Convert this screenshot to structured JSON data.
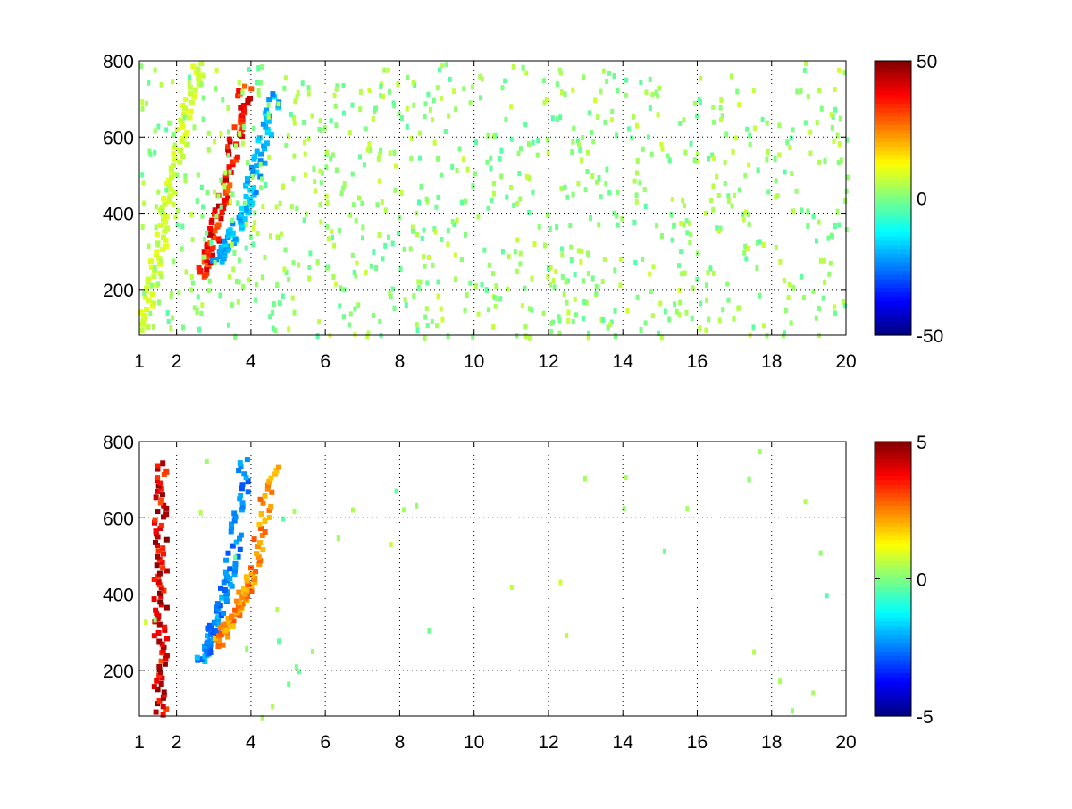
{
  "chart_data": [
    {
      "type": "heatmap",
      "title": "",
      "xlabel": "",
      "ylabel": "",
      "xlim": [
        1,
        20
      ],
      "ylim": [
        80,
        800
      ],
      "xticks": [
        1,
        2,
        4,
        6,
        8,
        10,
        12,
        14,
        16,
        18,
        20
      ],
      "xtick_labels": [
        "1",
        "2",
        "4",
        "6",
        "8",
        "10",
        "12",
        "14",
        "16",
        "18",
        "20"
      ],
      "yticks": [
        200,
        400,
        600,
        800
      ],
      "ytick_labels": [
        "200",
        "400",
        "600",
        "800"
      ],
      "grid": true,
      "colormap": "jet",
      "clim": [
        -50,
        50
      ],
      "colorbar_ticks": [
        50,
        0,
        -50
      ],
      "colorbar_tick_labels": [
        "50",
        "0",
        "-50"
      ],
      "features": [
        {
          "x": [
            2.6,
            2.9,
            3.2,
            3.5,
            3.8
          ],
          "y": [
            240,
            330,
            450,
            600,
            740
          ],
          "value": 45
        },
        {
          "x": [
            3.0,
            3.4,
            3.8,
            4.2,
            4.6
          ],
          "y": [
            280,
            340,
            430,
            560,
            720
          ],
          "value": -25
        },
        {
          "x": [
            1.0,
            2.5
          ],
          "y": [
            100,
            800
          ],
          "value": 10
        }
      ]
    },
    {
      "type": "heatmap",
      "title": "",
      "xlabel": "",
      "ylabel": "",
      "xlim": [
        1,
        20
      ],
      "ylim": [
        80,
        800
      ],
      "xticks": [
        1,
        2,
        4,
        6,
        8,
        10,
        12,
        14,
        16,
        18,
        20
      ],
      "xtick_labels": [
        "1",
        "2",
        "4",
        "6",
        "8",
        "10",
        "12",
        "14",
        "16",
        "18",
        "20"
      ],
      "yticks": [
        200,
        400,
        600,
        800
      ],
      "ytick_labels": [
        "200",
        "400",
        "600",
        "800"
      ],
      "grid": true,
      "colormap": "jet",
      "clim": [
        -5,
        5
      ],
      "colorbar_ticks": [
        5,
        0,
        -5
      ],
      "colorbar_tick_labels": [
        "5",
        "0",
        "-5"
      ],
      "features": [
        {
          "x": [
            2.6,
            3.0,
            3.4,
            3.8
          ],
          "y": [
            230,
            330,
            480,
            760
          ],
          "value": -3
        },
        {
          "x": [
            3.0,
            3.5,
            4.0,
            4.5
          ],
          "y": [
            270,
            360,
            460,
            740
          ],
          "value": 3
        },
        {
          "x": [
            1.5,
            1.5
          ],
          "y": [
            90,
            750
          ],
          "value": 5
        }
      ]
    }
  ]
}
